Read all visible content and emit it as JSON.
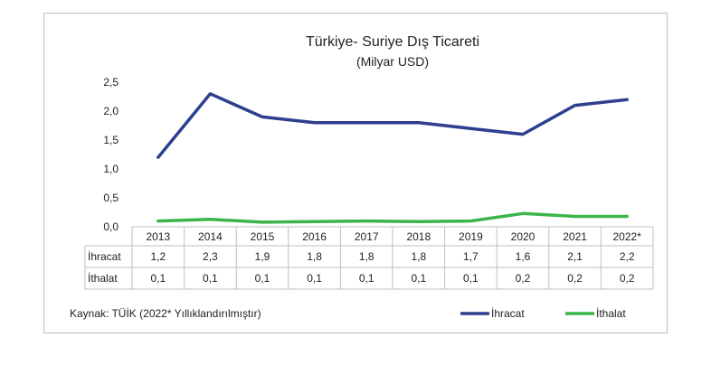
{
  "chart_data": {
    "type": "line",
    "title": "Türkiye- Suriye Dış Ticareti",
    "subtitle": "(Milyar USD)",
    "categories": [
      "2013",
      "2014",
      "2015",
      "2016",
      "2017",
      "2018",
      "2019",
      "2020",
      "2021",
      "2022*"
    ],
    "series": [
      {
        "name": "İhracat",
        "color": "#2e3f8f",
        "values": [
          1.2,
          2.3,
          1.9,
          1.8,
          1.8,
          1.8,
          1.7,
          1.6,
          2.1,
          2.2
        ],
        "labels": [
          "1,2",
          "2,3",
          "1,9",
          "1,8",
          "1,8",
          "1,8",
          "1,7",
          "1,6",
          "2,1",
          "2,2"
        ]
      },
      {
        "name": "İthalat",
        "color": "#3cb54a",
        "values": [
          0.1,
          0.13,
          0.08,
          0.09,
          0.1,
          0.09,
          0.1,
          0.23,
          0.18,
          0.18
        ],
        "labels": [
          "0,1",
          "0,1",
          "0,1",
          "0,1",
          "0,1",
          "0,1",
          "0,1",
          "0,2",
          "0,2",
          "0,2"
        ]
      }
    ],
    "yticks": [
      "0,0",
      "0,5",
      "1,0",
      "1,5",
      "2,0",
      "2,5"
    ],
    "ylim": [
      0,
      2.5
    ],
    "grid": false,
    "legend": "bottom-right",
    "source": "Kaynak: TÜİK (2022* Yıllıklandırılmıştır)"
  }
}
